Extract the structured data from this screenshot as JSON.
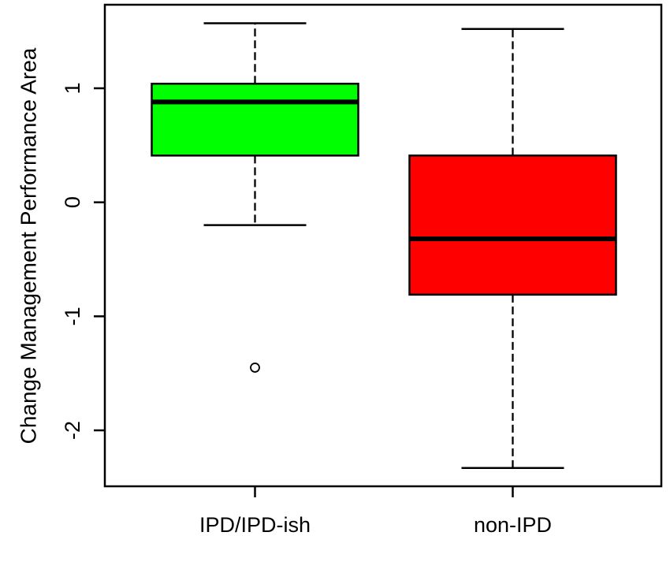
{
  "figure": {
    "background_color": "#ffffff",
    "border_color": "#000000"
  },
  "chart_data": {
    "type": "boxplot",
    "title": "",
    "xlabel": "",
    "ylabel": "Change Management Performance Area",
    "categories": [
      "IPD/IPD-ish",
      "non-IPD"
    ],
    "y_ticks": [
      1,
      0,
      -1,
      -2
    ],
    "ylim": [
      -2.49,
      1.73
    ],
    "grid": false,
    "legend": "none",
    "orientation": "vertical",
    "series": [
      {
        "name": "IPD/IPD-ish",
        "box_color": "#00ff00",
        "stroke_color": "#000000",
        "whisker_low": -0.2,
        "q1": 0.41,
        "median": 0.88,
        "q3": 1.04,
        "whisker_high": 1.57,
        "outliers": [
          -1.45
        ]
      },
      {
        "name": "non-IPD",
        "box_color": "#ff0000",
        "stroke_color": "#000000",
        "whisker_low": -2.33,
        "q1": -0.81,
        "median": -0.32,
        "q3": 0.41,
        "whisker_high": 1.52,
        "outliers": []
      }
    ]
  }
}
